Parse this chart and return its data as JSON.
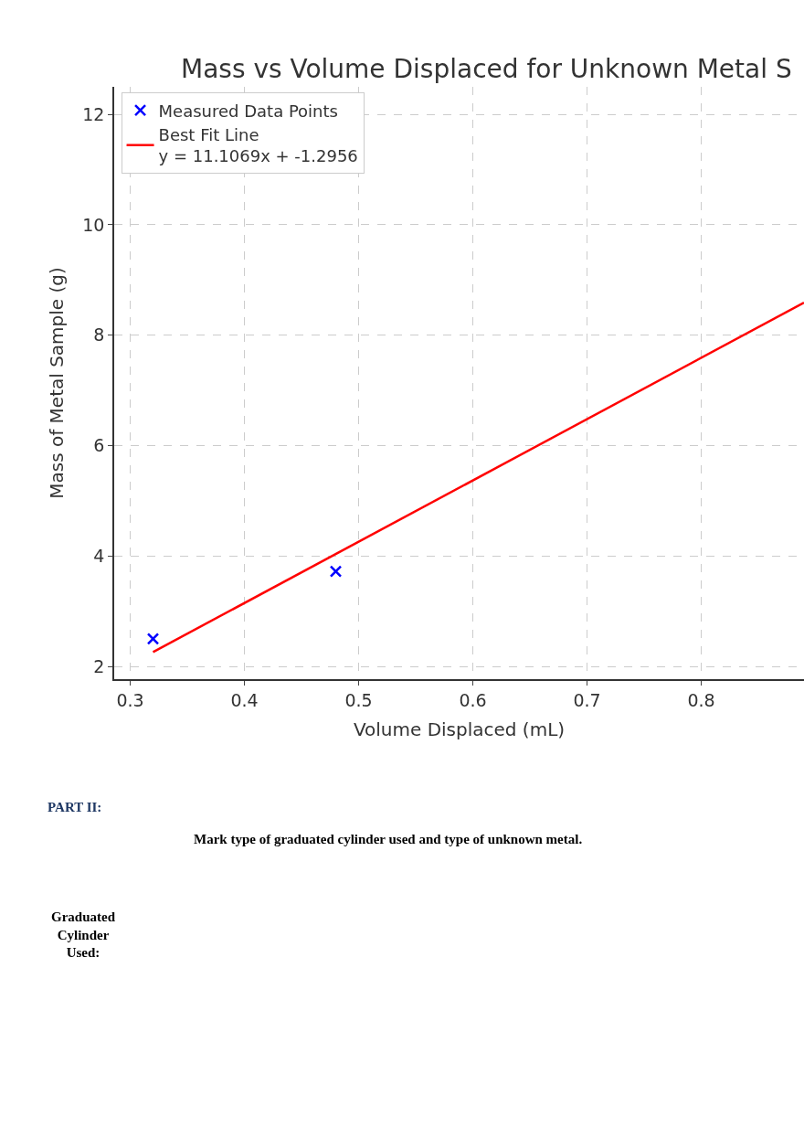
{
  "chart_data": {
    "type": "scatter",
    "title": "Mass vs Volume Displaced for Unknown Metal S",
    "xlabel": "Volume Displaced (mL)",
    "ylabel": "Mass of Metal Sample (g)",
    "series": [
      {
        "name": "Measured Data Points",
        "color": "#0000ff",
        "marker": "cross",
        "x": [
          0.32,
          0.48
        ],
        "values": [
          2.5,
          3.72
        ]
      },
      {
        "name": "Best Fit Line\ny = 11.1069x + -1.2956",
        "type": "line",
        "color": "#ff0000",
        "marker": "none",
        "line_style": "solid",
        "x": [
          0.32,
          0.89
        ],
        "values": [
          2.26,
          8.59
        ]
      }
    ],
    "xlim": [
      0.286,
      0.89
    ],
    "xticks": [
      0.3,
      0.4,
      0.5,
      0.6,
      0.7,
      0.8
    ],
    "ylim": [
      1.77,
      12.5
    ],
    "yticks": [
      2,
      4,
      6,
      8,
      10,
      12
    ],
    "grid": true,
    "legend": "top left",
    "annotations": [
      "PART II:",
      "Mark type of graduated cylinder used and type of unknown metal.",
      "Graduated\nCylinder\nUsed:"
    ]
  }
}
